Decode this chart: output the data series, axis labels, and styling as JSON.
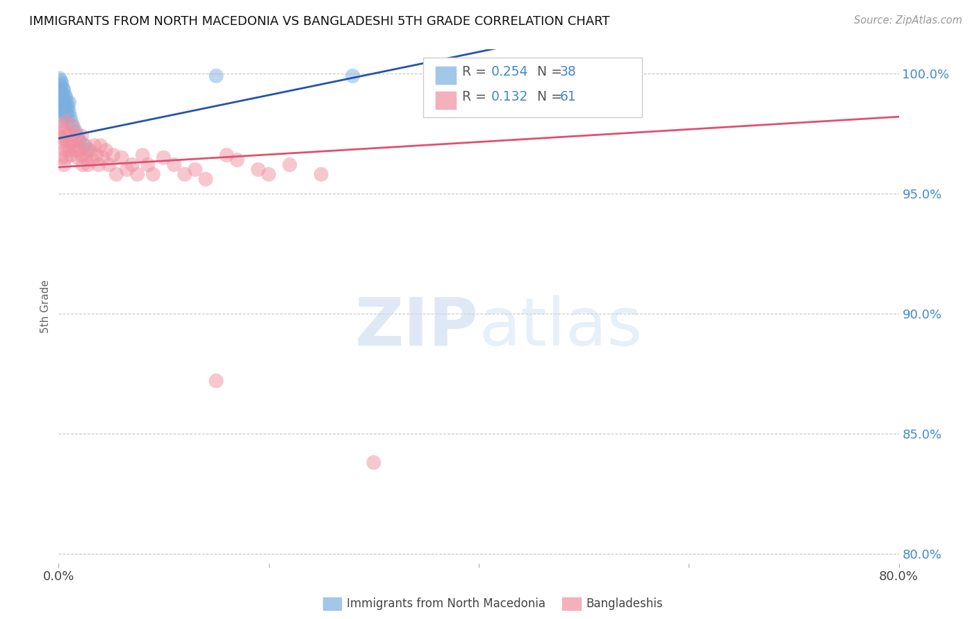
{
  "title": "IMMIGRANTS FROM NORTH MACEDONIA VS BANGLADESHI 5TH GRADE CORRELATION CHART",
  "source": "Source: ZipAtlas.com",
  "ylabel": "5th Grade",
  "blue_label": "Immigrants from North Macedonia",
  "pink_label": "Bangladeshis",
  "blue_R": "0.254",
  "blue_N": "38",
  "pink_R": "0.132",
  "pink_N": "61",
  "xlim": [
    0.0,
    0.8
  ],
  "ylim": [
    0.796,
    1.01
  ],
  "xticks": [
    0.0,
    0.2,
    0.4,
    0.6,
    0.8
  ],
  "yticks": [
    0.8,
    0.85,
    0.9,
    0.95,
    1.0
  ],
  "blue_color": "#7ab0e0",
  "pink_color": "#f090a0",
  "blue_line_color": "#2255aa",
  "pink_line_color": "#e05070",
  "blue_x": [
    0.001,
    0.001,
    0.001,
    0.002,
    0.002,
    0.002,
    0.002,
    0.003,
    0.003,
    0.003,
    0.003,
    0.003,
    0.004,
    0.004,
    0.004,
    0.005,
    0.005,
    0.005,
    0.006,
    0.006,
    0.007,
    0.007,
    0.007,
    0.008,
    0.008,
    0.009,
    0.01,
    0.01,
    0.011,
    0.012,
    0.014,
    0.016,
    0.018,
    0.02,
    0.025,
    0.028,
    0.15,
    0.28
  ],
  "blue_y": [
    0.998,
    0.995,
    0.991,
    0.997,
    0.993,
    0.989,
    0.985,
    0.996,
    0.992,
    0.988,
    0.984,
    0.98,
    0.994,
    0.99,
    0.986,
    0.993,
    0.989,
    0.985,
    0.991,
    0.987,
    0.99,
    0.986,
    0.982,
    0.988,
    0.984,
    0.986,
    0.988,
    0.984,
    0.982,
    0.98,
    0.978,
    0.976,
    0.974,
    0.972,
    0.97,
    0.968,
    0.999,
    0.999
  ],
  "pink_x": [
    0.001,
    0.002,
    0.003,
    0.003,
    0.004,
    0.005,
    0.005,
    0.006,
    0.007,
    0.007,
    0.008,
    0.009,
    0.01,
    0.01,
    0.011,
    0.012,
    0.013,
    0.014,
    0.015,
    0.016,
    0.017,
    0.018,
    0.019,
    0.02,
    0.022,
    0.022,
    0.023,
    0.025,
    0.026,
    0.028,
    0.03,
    0.032,
    0.034,
    0.036,
    0.038,
    0.04,
    0.042,
    0.045,
    0.048,
    0.052,
    0.055,
    0.06,
    0.065,
    0.07,
    0.075,
    0.08,
    0.085,
    0.09,
    0.1,
    0.11,
    0.12,
    0.13,
    0.14,
    0.15,
    0.16,
    0.17,
    0.19,
    0.2,
    0.22,
    0.25,
    0.3
  ],
  "pink_y": [
    0.974,
    0.971,
    0.978,
    0.965,
    0.973,
    0.976,
    0.962,
    0.968,
    0.98,
    0.965,
    0.974,
    0.97,
    0.975,
    0.968,
    0.972,
    0.966,
    0.978,
    0.97,
    0.972,
    0.975,
    0.968,
    0.965,
    0.972,
    0.968,
    0.974,
    0.966,
    0.962,
    0.97,
    0.965,
    0.962,
    0.968,
    0.964,
    0.97,
    0.966,
    0.962,
    0.97,
    0.965,
    0.968,
    0.962,
    0.966,
    0.958,
    0.965,
    0.96,
    0.962,
    0.958,
    0.966,
    0.962,
    0.958,
    0.965,
    0.962,
    0.958,
    0.96,
    0.956,
    0.872,
    0.966,
    0.964,
    0.96,
    0.958,
    0.962,
    0.958,
    0.838
  ]
}
